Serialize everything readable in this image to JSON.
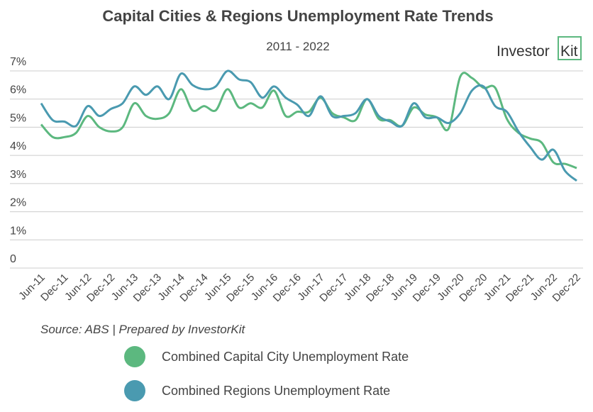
{
  "chart_data": {
    "type": "line",
    "title": "Capital Cities & Regions Unemployment Rate Trends",
    "subtitle": "2011 - 2022",
    "source": "Source: ABS | Prepared by InvestorKit",
    "categories": [
      "Jun-11",
      null,
      "Dec-11",
      null,
      "Jun-12",
      null,
      "Dec-12",
      null,
      "Jun-13",
      null,
      "Dec-13",
      null,
      "Jun-14",
      null,
      "Dec-14",
      null,
      "Jun-15",
      null,
      "Dec-15",
      null,
      "Jun-16",
      null,
      "Dec-16",
      null,
      "Jun-17",
      null,
      "Dec-17",
      null,
      "Jun-18",
      null,
      "Dec-18",
      null,
      "Jun-19",
      null,
      "Dec-19",
      null,
      "Jun-20",
      null,
      "Dec-20",
      null,
      "Jun-21",
      null,
      "Dec-21",
      null,
      "Jun-22",
      null,
      "Dec-22"
    ],
    "series": [
      {
        "name": "Combined Capital City Unemployment Rate",
        "color": "#5cb87f",
        "values": [
          5.1,
          4.65,
          4.65,
          4.8,
          5.4,
          5.0,
          4.85,
          5.0,
          5.85,
          5.4,
          5.3,
          5.5,
          6.35,
          5.6,
          5.75,
          5.6,
          6.35,
          5.7,
          5.85,
          5.7,
          6.3,
          5.4,
          5.55,
          5.55,
          6.05,
          5.5,
          5.35,
          5.25,
          6.0,
          5.3,
          5.25,
          5.05,
          5.7,
          5.45,
          5.35,
          4.95,
          6.8,
          6.75,
          6.4,
          6.4,
          5.3,
          4.8,
          4.6,
          4.45,
          3.75,
          3.7,
          3.55
        ]
      },
      {
        "name": "Combined Regions Unemployment Rate",
        "color": "#4a9ab0",
        "values": [
          5.85,
          5.25,
          5.2,
          5.05,
          5.75,
          5.4,
          5.65,
          5.85,
          6.45,
          6.15,
          6.45,
          6.0,
          6.9,
          6.5,
          6.35,
          6.45,
          7.0,
          6.7,
          6.6,
          6.05,
          6.45,
          6.05,
          5.8,
          5.4,
          6.1,
          5.4,
          5.4,
          5.5,
          6.0,
          5.4,
          5.2,
          5.05,
          5.85,
          5.35,
          5.35,
          5.15,
          5.5,
          6.3,
          6.45,
          5.75,
          5.55,
          4.85,
          4.3,
          3.85,
          4.2,
          3.45,
          3.1
        ]
      }
    ],
    "ylim": [
      0,
      7
    ],
    "yticks": [
      0,
      {
        "value": 1,
        "label": "1%"
      },
      {
        "value": 2,
        "label": "2%"
      },
      {
        "value": 3,
        "label": "3%"
      },
      {
        "value": 4,
        "label": "4%"
      },
      {
        "value": 5,
        "label": "5%"
      },
      {
        "value": 6,
        "label": "6%"
      },
      {
        "value": 7,
        "label": "7%"
      }
    ],
    "grid": true
  },
  "logo": {
    "text": "Investor",
    "box": "Kit"
  }
}
